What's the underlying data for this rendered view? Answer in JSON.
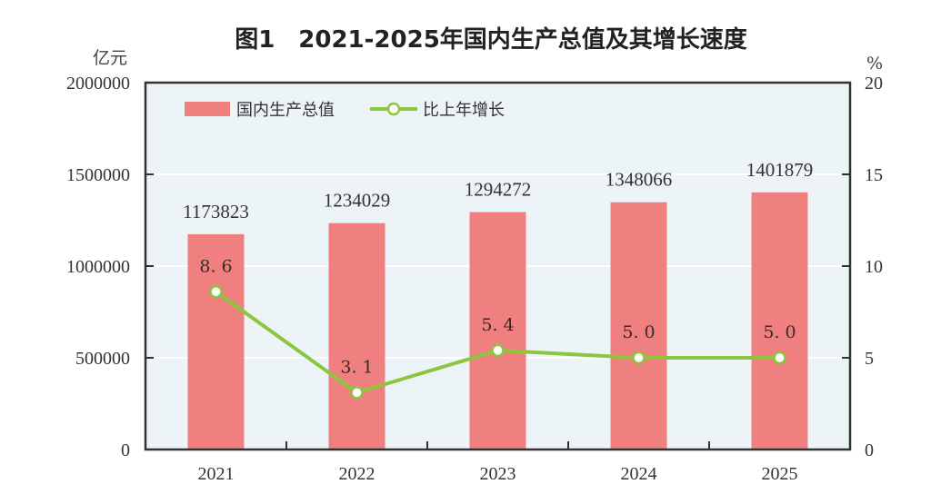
{
  "chart_data": {
    "type": "bar",
    "title": "图1　2021-2025年国内生产总值及其增长速度",
    "categories": [
      "2021",
      "2022",
      "2023",
      "2024",
      "2025"
    ],
    "series": [
      {
        "name": "国内生产总值",
        "type": "bar",
        "axis": "left",
        "values": [
          1173823,
          1234029,
          1294272,
          1348066,
          1401879
        ],
        "labels": [
          "1173823",
          "1234029",
          "1294272",
          "1348066",
          "1401879"
        ],
        "color": "#f08080"
      },
      {
        "name": "比上年增长",
        "type": "line",
        "axis": "right",
        "values": [
          8.6,
          3.1,
          5.4,
          5.0,
          5.0
        ],
        "labels": [
          "8. 6",
          "3. 1",
          "5. 4",
          "5. 0",
          "5. 0"
        ],
        "color": "#8cc63f"
      }
    ],
    "ylabel_left": "亿元",
    "ylabel_right": "%",
    "ylim_left": [
      0,
      2000000
    ],
    "ylim_right": [
      0,
      20
    ],
    "yticks_left": [
      "0",
      "500000",
      "1000000",
      "1500000",
      "2000000"
    ],
    "yticks_right": [
      "0",
      "5",
      "10",
      "15",
      "20"
    ],
    "grid": true,
    "legend_position": "top-left",
    "plot_background": "#edf4f7"
  }
}
